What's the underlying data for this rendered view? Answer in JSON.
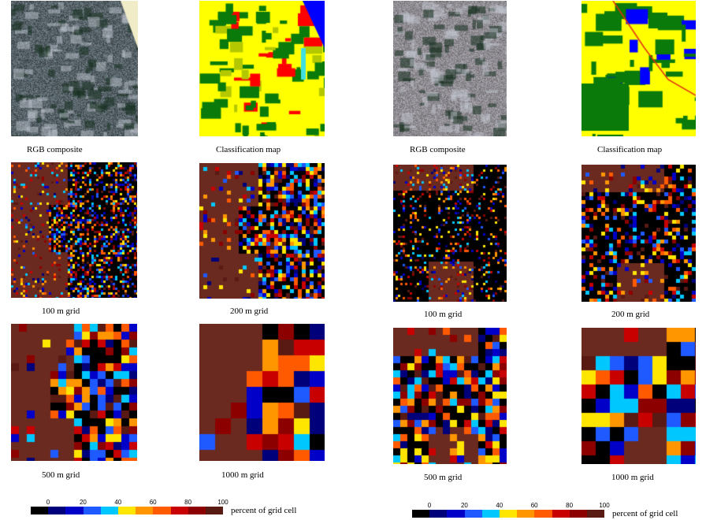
{
  "captions": {
    "rgb": "RGB composite",
    "classification": "Classification map",
    "grid100": "100 m grid",
    "grid200": "200 m grid",
    "grid500": "500 m grid",
    "grid1000": "1000 m grid"
  },
  "colorbar": {
    "label": "percent of grid cell",
    "ticks": [
      "0",
      "20",
      "40",
      "60",
      "80",
      "100"
    ],
    "colors": [
      "#000000",
      "#00007a",
      "#0000c8",
      "#1e5aff",
      "#00c8ff",
      "#ffe600",
      "#ff9600",
      "#ff5a00",
      "#c80000",
      "#8c0000",
      "#5a1a14"
    ]
  },
  "colors": {
    "background": "#ffffff",
    "no_data": "#000000",
    "dominant": "#6b2a20",
    "urban": "#ffff00",
    "forest": "#0a7a0a",
    "water": "#0000ff",
    "built": "#ff0000",
    "grassland": "#b4c800"
  }
}
